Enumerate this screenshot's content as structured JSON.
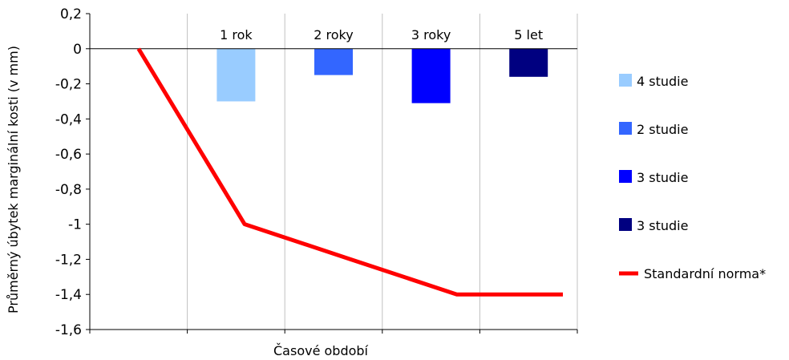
{
  "chart_data": {
    "type": "bar",
    "categories": [
      "",
      "1 rok",
      "2 roky",
      "3 roky",
      "5 let"
    ],
    "series": [
      {
        "name": "4 studie",
        "values": [
          null,
          -0.3,
          null,
          null,
          null
        ],
        "color": "#99CCFF"
      },
      {
        "name": "2 studie",
        "values": [
          null,
          null,
          -0.15,
          null,
          null
        ],
        "color": "#3366FF"
      },
      {
        "name": "3 studie",
        "values": [
          null,
          null,
          null,
          -0.31,
          null
        ],
        "color": "#0000FF"
      },
      {
        "name": "3 studie",
        "values": [
          null,
          null,
          null,
          null,
          -0.16
        ],
        "color": "#000080"
      }
    ],
    "line_series": {
      "name": "Standardní norma*",
      "color": "#FF0000",
      "points": [
        [
          0,
          0
        ],
        [
          1,
          -1.0
        ],
        [
          2,
          -1.2
        ],
        [
          3,
          -1.4
        ],
        [
          4,
          -1.4
        ]
      ]
    },
    "xlabel": "Časové období",
    "ylabel": "Průměrný úbytek marginální kosti (v mm)",
    "ylim": [
      -1.6,
      0.2
    ],
    "yticks": [
      0.2,
      0,
      -0.2,
      -0.4,
      -0.6,
      -0.8,
      -1,
      -1.2,
      -1.4,
      -1.6
    ],
    "ytick_labels": [
      "0,2",
      "0",
      "-0,2",
      "-0,4",
      "-0,6",
      "-0,8",
      "-1",
      "-1,2",
      "-1,4",
      "-1,6"
    ],
    "grid": "vertical",
    "legend": "right"
  }
}
